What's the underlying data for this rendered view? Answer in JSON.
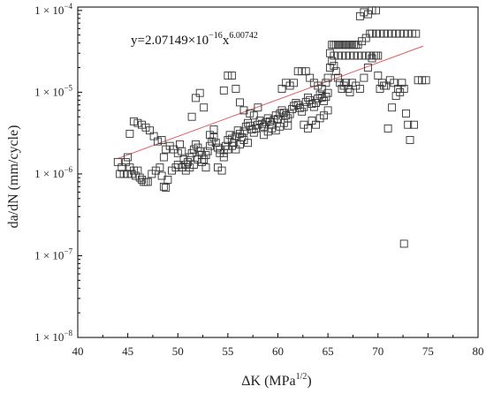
{
  "chart_data": {
    "type": "scatter",
    "title": "",
    "xlabel": {
      "base": "ΔK (MPa",
      "sup": "1/2",
      "tail": ")"
    },
    "ylabel": "da/dN (mm/cycle)",
    "xlim": [
      40,
      80
    ],
    "ylim": [
      1e-08,
      0.00011
    ],
    "y_scale": "log",
    "grid": false,
    "x_ticks": [
      "40",
      "45",
      "50",
      "55",
      "60",
      "65",
      "70",
      "75",
      "80"
    ],
    "y_ticks": [
      {
        "value": 1e-08,
        "base": "1 × 10",
        "exp": "−8"
      },
      {
        "value": 1e-07,
        "base": "1 × 10",
        "exp": "−7"
      },
      {
        "value": 1e-06,
        "base": "1 × 10",
        "exp": "−6"
      },
      {
        "value": 1e-05,
        "base": "1 × 10",
        "exp": "−5"
      },
      {
        "value": 0.0001,
        "base": "1 × 10",
        "exp": "−4"
      }
    ],
    "fit": {
      "coefficient": 2.07149e-16,
      "exponent": 6.00742,
      "x_range": [
        44,
        74.5
      ],
      "color": "#e05a5a",
      "label": {
        "prefix": "y=2.07149×10",
        "exp1": "−16",
        "mid": "x",
        "exp2": "6.00742"
      }
    },
    "marker": {
      "shape": "open-square",
      "color": "#333333"
    },
    "series": [
      {
        "points": [
          [
            44.0,
            1.4e-06
          ],
          [
            44.2,
            1e-06
          ],
          [
            44.4,
            1.2e-06
          ],
          [
            44.6,
            1e-06
          ],
          [
            44.8,
            1.4e-06
          ],
          [
            45.0,
            1e-06
          ],
          [
            45.2,
            1.2e-06
          ],
          [
            45.4,
            1e-06
          ],
          [
            45.6,
            1.1e-06
          ],
          [
            45.8,
            9.5e-07
          ],
          [
            46.0,
            1.1e-06
          ],
          [
            46.2,
            9e-07
          ],
          [
            46.4,
            8.5e-07
          ],
          [
            46.6,
            8e-07
          ],
          [
            46.8,
            8e-07
          ],
          [
            47.0,
            8e-07
          ],
          [
            47.4,
            1e-06
          ],
          [
            47.8,
            1.1e-06
          ],
          [
            48.2,
            1.2e-06
          ],
          [
            48.6,
            1.6e-06
          ],
          [
            45.0,
            1.6e-06
          ],
          [
            45.2,
            3.1e-06
          ],
          [
            45.6,
            4.4e-06
          ],
          [
            46.0,
            4.2e-06
          ],
          [
            46.4,
            4e-06
          ],
          [
            46.8,
            3.7e-06
          ],
          [
            47.2,
            3.4e-06
          ],
          [
            47.6,
            2.9e-06
          ],
          [
            48.0,
            2.5e-06
          ],
          [
            48.4,
            2.6e-06
          ],
          [
            48.6,
            7e-07
          ],
          [
            48.8,
            6.8e-07
          ],
          [
            49.0,
            8.5e-07
          ],
          [
            48.4,
            9.5e-07
          ],
          [
            49.4,
            1.1e-06
          ],
          [
            49.8,
            1.2e-06
          ],
          [
            48.8,
            2e-06
          ],
          [
            49.2,
            2.2e-06
          ],
          [
            49.6,
            2e-06
          ],
          [
            50.0,
            1.8e-06
          ],
          [
            50.2,
            2.3e-06
          ],
          [
            50.4,
            1.9e-06
          ],
          [
            50.6,
            1.5e-06
          ],
          [
            50.8,
            1.3e-06
          ],
          [
            51.0,
            1.4e-06
          ],
          [
            51.2,
            1.6e-06
          ],
          [
            51.4,
            1.8e-06
          ],
          [
            51.6,
            2e-06
          ],
          [
            51.8,
            2.3e-06
          ],
          [
            52.0,
            2.1e-06
          ],
          [
            52.2,
            1.9e-06
          ],
          [
            52.4,
            1.7e-06
          ],
          [
            52.6,
            1.5e-06
          ],
          [
            52.8,
            1.7e-06
          ],
          [
            53.0,
            1.9e-06
          ],
          [
            53.2,
            2.2e-06
          ],
          [
            53.4,
            2.5e-06
          ],
          [
            53.6,
            2.8e-06
          ],
          [
            53.8,
            2.4e-06
          ],
          [
            54.0,
            2.1e-06
          ],
          [
            54.2,
            1.8e-06
          ],
          [
            50.0,
            1.3e-06
          ],
          [
            50.4,
            1.2e-06
          ],
          [
            50.8,
            1.1e-06
          ],
          [
            51.2,
            1.2e-06
          ],
          [
            51.6,
            1.3e-06
          ],
          [
            52.0,
            1.5e-06
          ],
          [
            52.4,
            1.4e-06
          ],
          [
            52.8,
            1.2e-06
          ],
          [
            51.4,
            5e-06
          ],
          [
            51.8,
            8.5e-06
          ],
          [
            52.2,
            9.8e-06
          ],
          [
            52.6,
            6.5e-06
          ],
          [
            53.2,
            3e-06
          ],
          [
            53.6,
            3.5e-06
          ],
          [
            54.0,
            1.2e-06
          ],
          [
            54.4,
            1.1e-06
          ],
          [
            54.6,
            1.6e-06
          ],
          [
            54.8,
            2.2e-06
          ],
          [
            55.0,
            2.6e-06
          ],
          [
            55.2,
            3e-06
          ],
          [
            55.4,
            2.7e-06
          ],
          [
            55.6,
            2.4e-06
          ],
          [
            55.8,
            2.9e-06
          ],
          [
            56.0,
            3.4e-06
          ],
          [
            56.2,
            3.1e-06
          ],
          [
            56.4,
            2.8e-06
          ],
          [
            56.6,
            3.3e-06
          ],
          [
            56.8,
            3.8e-06
          ],
          [
            57.0,
            4.2e-06
          ],
          [
            57.2,
            3.9e-06
          ],
          [
            57.4,
            3.5e-06
          ],
          [
            57.6,
            3.2e-06
          ],
          [
            57.8,
            3.6e-06
          ],
          [
            58.0,
            4e-06
          ],
          [
            58.2,
            4.5e-06
          ],
          [
            58.4,
            4.1e-06
          ],
          [
            58.6,
            3.8e-06
          ],
          [
            58.8,
            4.3e-06
          ],
          [
            59.0,
            4.8e-06
          ],
          [
            59.2,
            4.4e-06
          ],
          [
            59.4,
            4e-06
          ],
          [
            59.6,
            4.6e-06
          ],
          [
            59.8,
            5.2e-06
          ],
          [
            60.0,
            4.7e-06
          ],
          [
            54.2,
            2e-06
          ],
          [
            54.6,
            1.8e-06
          ],
          [
            55.0,
            2e-06
          ],
          [
            55.4,
            2.2e-06
          ],
          [
            55.8,
            2e-06
          ],
          [
            56.2,
            2.3e-06
          ],
          [
            56.6,
            2.6e-06
          ],
          [
            57.0,
            2.4e-06
          ],
          [
            54.6,
            1.05e-05
          ],
          [
            55.0,
            1.6e-05
          ],
          [
            55.4,
            1.6e-05
          ],
          [
            55.8,
            1.1e-05
          ],
          [
            56.2,
            7.5e-06
          ],
          [
            56.6,
            6e-06
          ],
          [
            57.2,
            5.5e-06
          ],
          [
            57.6,
            5.2e-06
          ],
          [
            58.0,
            6.5e-06
          ],
          [
            58.6,
            3e-06
          ],
          [
            59.0,
            3.3e-06
          ],
          [
            59.4,
            3.6e-06
          ],
          [
            59.8,
            3.4e-06
          ],
          [
            60.2,
            3.8e-06
          ],
          [
            60.6,
            4.2e-06
          ],
          [
            61.0,
            3.9e-06
          ],
          [
            60.2,
            5.5e-06
          ],
          [
            60.4,
            6e-06
          ],
          [
            60.6,
            5.6e-06
          ],
          [
            60.8,
            5.2e-06
          ],
          [
            61.0,
            4.8e-06
          ],
          [
            61.2,
            5.4e-06
          ],
          [
            61.4,
            6.2e-06
          ],
          [
            61.6,
            6.8e-06
          ],
          [
            61.8,
            7.4e-06
          ],
          [
            62.0,
            7e-06
          ],
          [
            62.2,
            6.4e-06
          ],
          [
            62.4,
            5.8e-06
          ],
          [
            62.6,
            6.6e-06
          ],
          [
            62.8,
            7.6e-06
          ],
          [
            63.0,
            8.6e-06
          ],
          [
            63.2,
            8e-06
          ],
          [
            63.4,
            7.2e-06
          ],
          [
            63.6,
            6.6e-06
          ],
          [
            63.8,
            7.4e-06
          ],
          [
            64.0,
            8.4e-06
          ],
          [
            64.2,
            9.4e-06
          ],
          [
            64.4,
            8.6e-06
          ],
          [
            64.6,
            7.8e-06
          ],
          [
            64.8,
            8.8e-06
          ],
          [
            65.0,
            9.8e-06
          ],
          [
            60.4,
            1.1e-05
          ],
          [
            60.8,
            1.3e-05
          ],
          [
            61.2,
            1.2e-05
          ],
          [
            61.6,
            1.3e-05
          ],
          [
            62.0,
            1.8e-05
          ],
          [
            62.4,
            1.8e-05
          ],
          [
            62.8,
            1.8e-05
          ],
          [
            63.2,
            1.5e-05
          ],
          [
            63.6,
            1.3e-05
          ],
          [
            64.0,
            1.2e-05
          ],
          [
            64.4,
            1.1e-05
          ],
          [
            62.6,
            4e-06
          ],
          [
            63.0,
            3.6e-06
          ],
          [
            63.4,
            4.5e-06
          ],
          [
            63.8,
            4e-06
          ],
          [
            64.2,
            4.8e-06
          ],
          [
            64.6,
            5.2e-06
          ],
          [
            65.0,
            6e-06
          ],
          [
            64.8,
            1.3e-05
          ],
          [
            65.0,
            1.5e-05
          ],
          [
            65.2,
            2e-05
          ],
          [
            65.4,
            2.4e-05
          ],
          [
            65.6,
            2.1e-05
          ],
          [
            65.8,
            1.8e-05
          ],
          [
            66.0,
            1.5e-05
          ],
          [
            66.2,
            1.3e-05
          ],
          [
            66.4,
            1.1e-05
          ],
          [
            66.6,
            1.2e-05
          ],
          [
            66.8,
            1.3e-05
          ],
          [
            67.0,
            1.1e-05
          ],
          [
            67.2,
            1e-05
          ],
          [
            65.2,
            3e-05
          ],
          [
            65.4,
            3.8e-05
          ],
          [
            65.6,
            3.8e-05
          ],
          [
            65.8,
            3.8e-05
          ],
          [
            66.0,
            3.8e-05
          ],
          [
            66.2,
            3.8e-05
          ],
          [
            66.4,
            3.8e-05
          ],
          [
            66.6,
            3.8e-05
          ],
          [
            66.8,
            3.8e-05
          ],
          [
            67.0,
            3.8e-05
          ],
          [
            67.2,
            3.8e-05
          ],
          [
            67.4,
            3.8e-05
          ],
          [
            67.6,
            3.8e-05
          ],
          [
            67.8,
            3.8e-05
          ],
          [
            68.0,
            3.8e-05
          ],
          [
            65.6,
            2.8e-05
          ],
          [
            66.0,
            2.8e-05
          ],
          [
            66.4,
            2.8e-05
          ],
          [
            66.8,
            2.8e-05
          ],
          [
            67.2,
            2.8e-05
          ],
          [
            67.6,
            2.8e-05
          ],
          [
            68.0,
            2.8e-05
          ],
          [
            68.4,
            2.8e-05
          ],
          [
            68.8,
            2.8e-05
          ],
          [
            69.2,
            2.8e-05
          ],
          [
            69.6,
            2.8e-05
          ],
          [
            70.0,
            2.8e-05
          ],
          [
            68.2,
            8.5e-05
          ],
          [
            68.6,
            9.5e-05
          ],
          [
            69.0,
            9e-05
          ],
          [
            69.4,
            0.0001
          ],
          [
            69.8,
            0.0001
          ],
          [
            68.4,
            4.2e-05
          ],
          [
            68.8,
            4.6e-05
          ],
          [
            69.2,
            5.2e-05
          ],
          [
            69.4,
            5.2e-05
          ],
          [
            69.8,
            5.2e-05
          ],
          [
            70.2,
            5.2e-05
          ],
          [
            70.6,
            5.2e-05
          ],
          [
            71.0,
            5.2e-05
          ],
          [
            71.4,
            5.2e-05
          ],
          [
            71.8,
            5.2e-05
          ],
          [
            72.2,
            5.2e-05
          ],
          [
            72.6,
            5.2e-05
          ],
          [
            73.0,
            5.2e-05
          ],
          [
            73.4,
            5.2e-05
          ],
          [
            73.8,
            5.2e-05
          ],
          [
            67.4,
            1.3e-05
          ],
          [
            67.8,
            1.2e-05
          ],
          [
            68.2,
            1.1e-05
          ],
          [
            68.6,
            1.5e-05
          ],
          [
            69.0,
            2e-05
          ],
          [
            69.4,
            2.6e-05
          ],
          [
            69.8,
            2.8e-05
          ],
          [
            70.0,
            1.6e-05
          ],
          [
            70.4,
            1.3e-05
          ],
          [
            70.8,
            1.2e-05
          ],
          [
            71.2,
            1.4e-05
          ],
          [
            71.6,
            1.3e-05
          ],
          [
            72.0,
            1.1e-05
          ],
          [
            72.4,
            1.3e-05
          ],
          [
            70.2,
            1.1e-05
          ],
          [
            70.6,
            1.2e-05
          ],
          [
            71.0,
            3.6e-06
          ],
          [
            71.4,
            6.5e-06
          ],
          [
            71.8,
            9e-06
          ],
          [
            72.2,
            1e-05
          ],
          [
            72.6,
            1.1e-05
          ],
          [
            72.8,
            5.5e-06
          ],
          [
            73.0,
            4e-06
          ],
          [
            73.2,
            2.6e-06
          ],
          [
            73.6,
            4e-06
          ],
          [
            74.0,
            1.4e-05
          ],
          [
            74.4,
            1.4e-05
          ],
          [
            74.8,
            1.4e-05
          ],
          [
            72.6,
            1.4e-07
          ]
        ]
      }
    ]
  }
}
